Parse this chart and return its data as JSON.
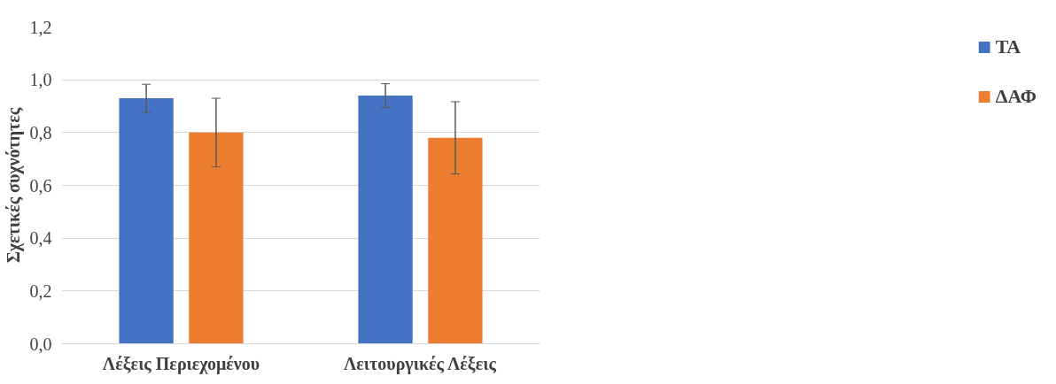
{
  "chart_data": {
    "type": "bar",
    "ylabel": "Σχετικές συχνότητες",
    "categories": [
      "Λέξεις Περιεχομένου",
      "Λειτουργικές Λέξεις"
    ],
    "series": [
      {
        "name": "ΤΑ",
        "color": "#4472c4",
        "values": [
          0.93,
          0.94
        ],
        "errors": [
          0.053,
          0.045
        ]
      },
      {
        "name": "ΔΑΦ",
        "color": "#ed7d31",
        "values": [
          0.8,
          0.78
        ],
        "errors": [
          0.13,
          0.137
        ]
      }
    ],
    "ylim": [
      0,
      1.2
    ],
    "yticks": [
      {
        "value": 0,
        "label": "0,0"
      },
      {
        "value": 0.2,
        "label": "0,2"
      },
      {
        "value": 0.4,
        "label": "0,4"
      },
      {
        "value": 0.6,
        "label": "0,6"
      },
      {
        "value": 0.8,
        "label": "0,8"
      },
      {
        "value": 1.0,
        "label": "1,0"
      },
      {
        "value": 1.2,
        "label": "1,2"
      }
    ],
    "grid": "y",
    "legend": "right"
  }
}
